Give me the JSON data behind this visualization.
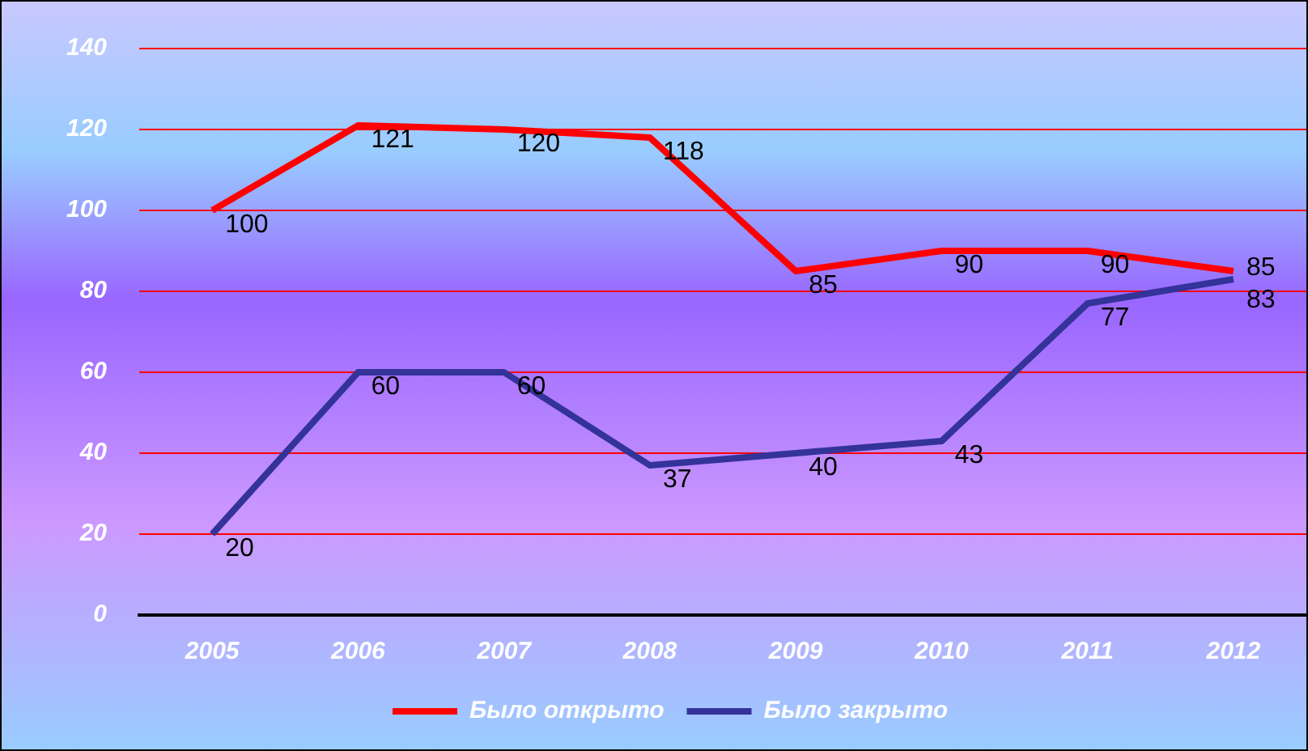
{
  "chart_data": {
    "type": "line",
    "categories": [
      "2005",
      "2006",
      "2007",
      "2008",
      "2009",
      "2010",
      "2011",
      "2012"
    ],
    "series": [
      {
        "name": "Было открыто",
        "color": "#ff0000",
        "values": [
          100,
          121,
          120,
          118,
          85,
          90,
          90,
          85
        ]
      },
      {
        "name": "Было закрыто",
        "color": "#333399",
        "values": [
          20,
          60,
          60,
          37,
          40,
          43,
          77,
          83
        ]
      }
    ],
    "ylim": [
      0,
      140
    ],
    "yticks": [
      0,
      20,
      40,
      60,
      80,
      100,
      120,
      140
    ],
    "grid": "y",
    "legend": "bottom",
    "data_labels": true,
    "marker": "none",
    "line_style": "solid"
  }
}
